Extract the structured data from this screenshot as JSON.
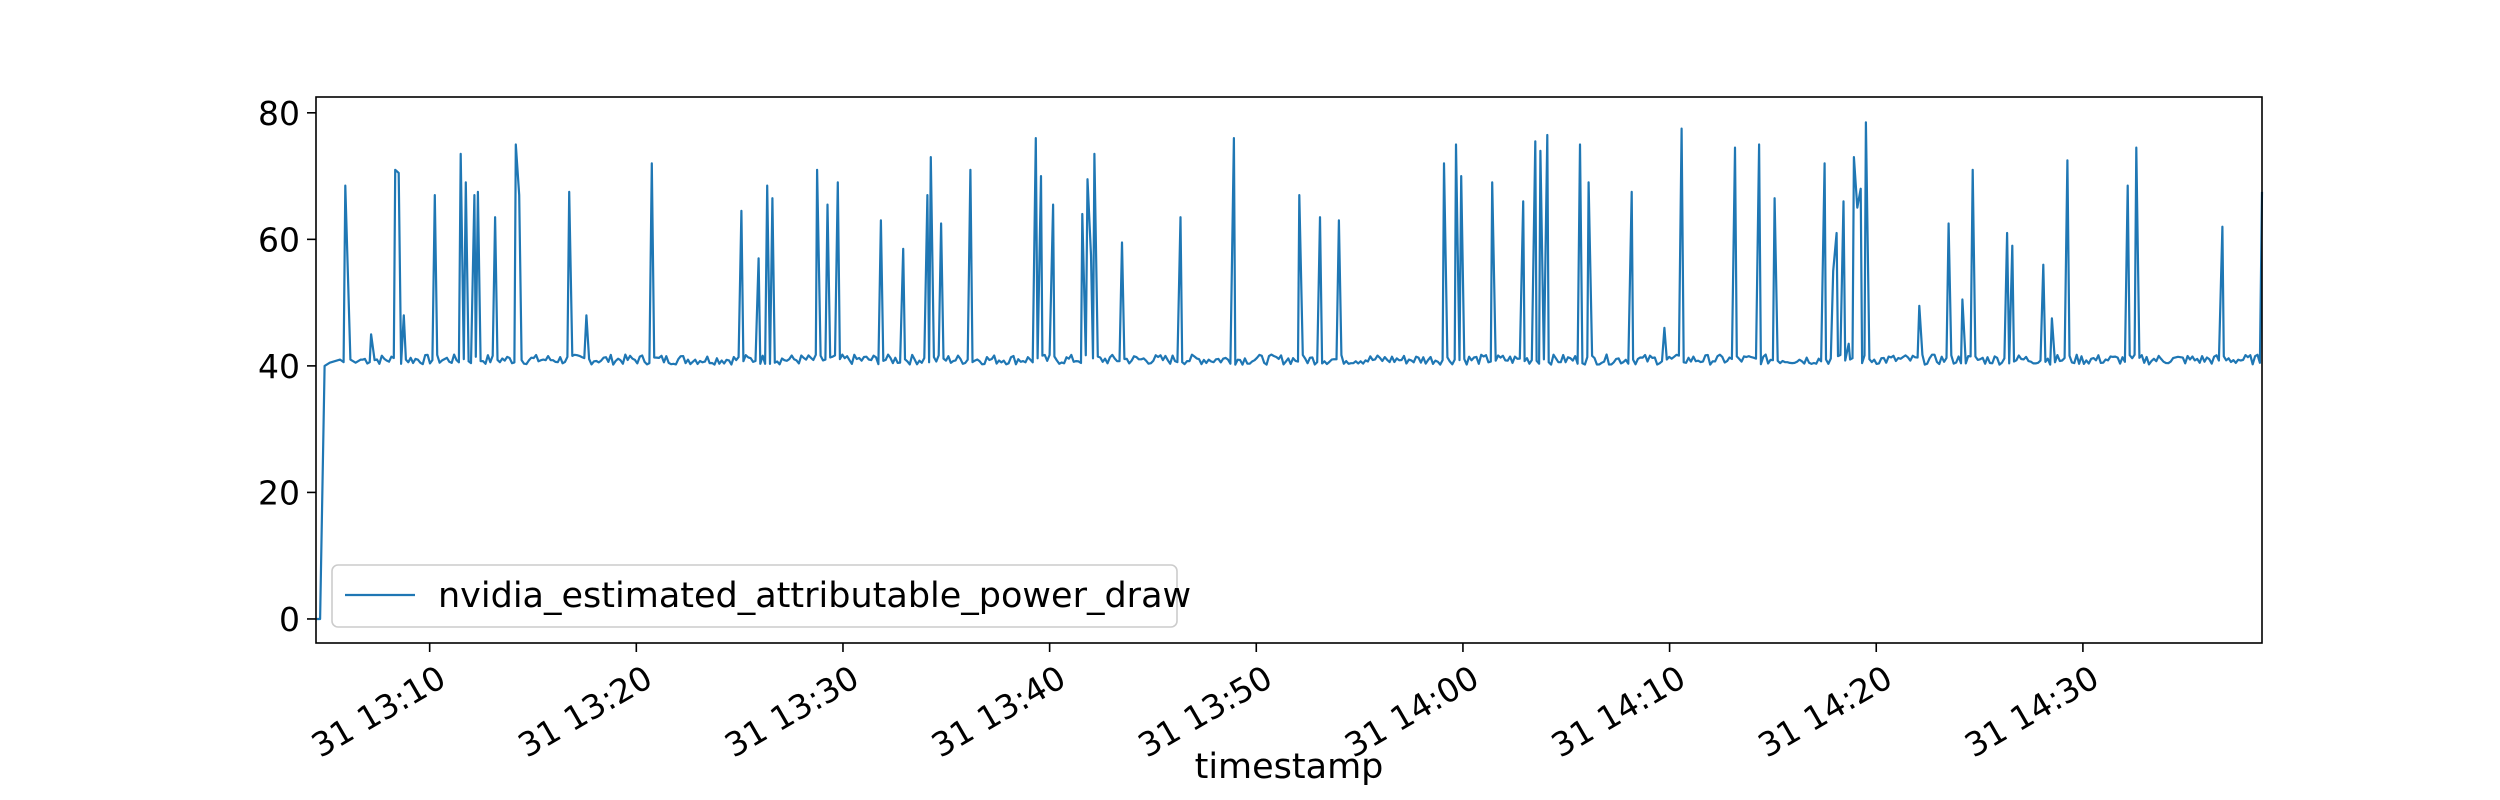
{
  "chart_data": {
    "type": "line",
    "title": "",
    "xlabel": "timestamp",
    "ylabel": "",
    "x_range": [
      "13:04:30",
      "14:38:40"
    ],
    "ylim": [
      -3.8,
      82.5
    ],
    "yticks": [
      0,
      20,
      40,
      60,
      80
    ],
    "xticks": [
      {
        "t": "13:10",
        "label": "31 13:10"
      },
      {
        "t": "13:20",
        "label": "31 13:20"
      },
      {
        "t": "13:30",
        "label": "31 13:30"
      },
      {
        "t": "13:40",
        "label": "31 13:40"
      },
      {
        "t": "13:50",
        "label": "31 13:50"
      },
      {
        "t": "14:00",
        "label": "31 14:00"
      },
      {
        "t": "14:10",
        "label": "31 14:10"
      },
      {
        "t": "14:20",
        "label": "31 14:20"
      },
      {
        "t": "14:30",
        "label": "31 14:30"
      }
    ],
    "grid": false,
    "legend_position": "lower-left",
    "series": [
      {
        "name": "nvidia_estimated_attributable_power_draw",
        "color": "#1f77b4",
        "baseline": 41,
        "points": [
          [
            "13:04:30",
            0
          ],
          [
            "13:04:42",
            0
          ],
          [
            "13:04:55",
            40
          ],
          [
            "13:05:10",
            40.5
          ],
          [
            "13:05:40",
            41
          ],
          [
            "13:06:40",
            41
          ],
          [
            "13:05:50",
            40.6
          ],
          [
            "13:06:10",
            41
          ],
          [
            "13:06:25",
            40.5
          ]
        ],
        "spikes": [
          [
            "13:05:55",
            68.5
          ],
          [
            "13:07:10",
            45
          ],
          [
            "13:08:20",
            71
          ],
          [
            "13:08:30",
            70.5
          ],
          [
            "13:08:45",
            48
          ],
          [
            "13:10:15",
            67
          ],
          [
            "13:11:30",
            73.5
          ],
          [
            "13:11:45",
            69
          ],
          [
            "13:12:10",
            67
          ],
          [
            "13:12:20",
            67.5
          ],
          [
            "13:13:10",
            63.5
          ],
          [
            "13:14:10",
            75
          ],
          [
            "13:14:20",
            67
          ],
          [
            "13:16:45",
            67.5
          ],
          [
            "13:17:35",
            48
          ],
          [
            "13:20:45",
            72
          ],
          [
            "13:25:05",
            64.5
          ],
          [
            "13:25:55",
            57
          ],
          [
            "13:26:20",
            68.5
          ],
          [
            "13:26:35",
            66.5
          ],
          [
            "13:28:45",
            71
          ],
          [
            "13:29:15",
            65.5
          ],
          [
            "13:29:45",
            69
          ],
          [
            "13:31:50",
            63
          ],
          [
            "13:32:55",
            58.5
          ],
          [
            "13:34:05",
            67
          ],
          [
            "13:34:15",
            73
          ],
          [
            "13:34:45",
            62.5
          ],
          [
            "13:36:10",
            71
          ],
          [
            "13:39:20",
            76
          ],
          [
            "13:39:35",
            70
          ],
          [
            "13:40:10",
            65.5
          ],
          [
            "13:41:35",
            64
          ],
          [
            "13:41:50",
            69.5
          ],
          [
            "13:42:00",
            57.5
          ],
          [
            "13:42:10",
            73.5
          ],
          [
            "13:43:30",
            59.5
          ],
          [
            "13:46:20",
            63.5
          ],
          [
            "13:48:55",
            76
          ],
          [
            "13:52:05",
            67
          ],
          [
            "13:53:05",
            63.5
          ],
          [
            "13:54:00",
            63
          ],
          [
            "13:59:05",
            72
          ],
          [
            "13:59:40",
            75
          ],
          [
            "13:59:55",
            70
          ],
          [
            "14:01:25",
            69
          ],
          [
            "14:02:55",
            66
          ],
          [
            "14:03:30",
            75.5
          ],
          [
            "14:03:45",
            74
          ],
          [
            "14:04:05",
            76.5
          ],
          [
            "14:05:40",
            75
          ],
          [
            "14:06:05",
            69
          ],
          [
            "14:08:10",
            67.5
          ],
          [
            "14:09:45",
            46
          ],
          [
            "14:10:35",
            77.5
          ],
          [
            "14:13:10",
            74.5
          ],
          [
            "14:14:20",
            75
          ],
          [
            "14:15:05",
            66.5
          ],
          [
            "14:17:30",
            72
          ],
          [
            "14:17:55",
            55
          ],
          [
            "14:18:05",
            61
          ],
          [
            "14:18:25",
            66
          ],
          [
            "14:18:40",
            43.5
          ],
          [
            "14:18:55",
            73
          ],
          [
            "14:19:05",
            65
          ],
          [
            "14:19:15",
            68
          ],
          [
            "14:19:30",
            78.5
          ],
          [
            "14:22:05",
            49.5
          ],
          [
            "14:23:30",
            62.5
          ],
          [
            "14:24:10",
            50.5
          ],
          [
            "14:24:40",
            71
          ],
          [
            "14:26:20",
            61
          ],
          [
            "14:26:35",
            59
          ],
          [
            "14:28:05",
            56
          ],
          [
            "14:28:30",
            47.5
          ],
          [
            "14:29:15",
            72.5
          ],
          [
            "14:32:10",
            68.5
          ],
          [
            "14:32:35",
            74.5
          ],
          [
            "14:36:45",
            62
          ],
          [
            "14:38:40",
            67.5
          ]
        ]
      }
    ]
  }
}
